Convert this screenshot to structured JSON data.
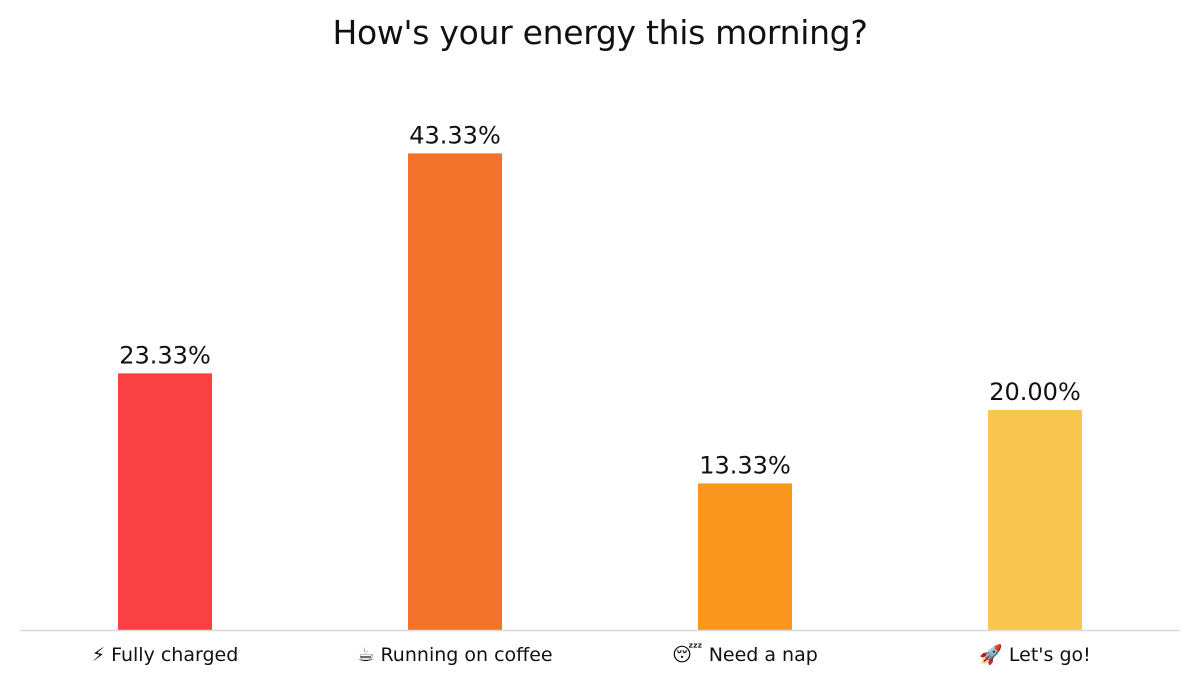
{
  "chart_data": {
    "type": "bar",
    "title": "How's your energy this morning?",
    "categories": [
      "⚡ Fully charged",
      "☕ Running on coffee",
      "😴 Need a nap",
      "🚀 Let's go!"
    ],
    "values": [
      23.33,
      43.33,
      13.33,
      20.0
    ],
    "value_labels": [
      "23.33%",
      "43.33%",
      "13.33%",
      "20.00%"
    ],
    "bar_colors": [
      "#F94144",
      "#F3722C",
      "#F8961E",
      "#F9C74F"
    ],
    "axis_color": "#D9D9D9",
    "ylim": [
      0,
      50
    ],
    "grid": false,
    "legend": "none"
  }
}
